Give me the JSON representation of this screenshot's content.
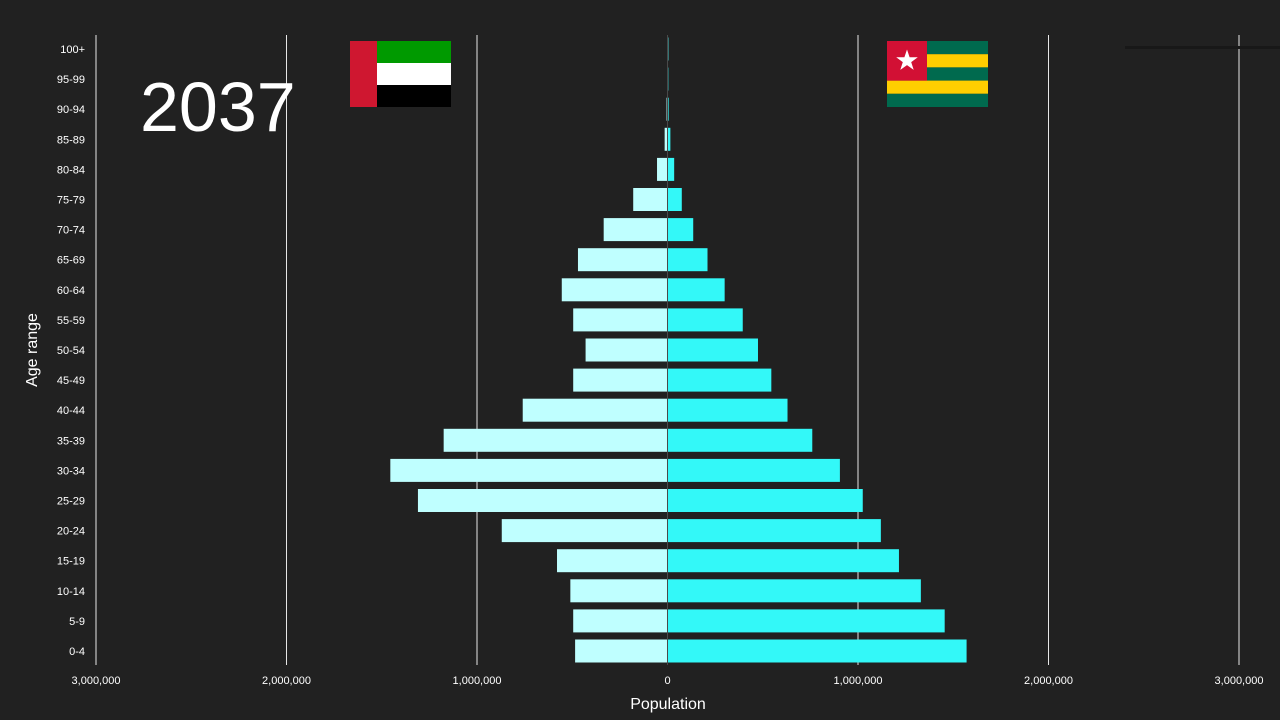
{
  "year": "2037",
  "flags": {
    "left": "uae-flag-icon",
    "right": "togo-flag-icon"
  },
  "colors": {
    "background": "#212121",
    "left_bars": "#bfffff",
    "right_bars": "#33f8f8",
    "grid": "#e6e6e6",
    "text": "#ffffff"
  },
  "chart_data": {
    "type": "bar",
    "orientation": "horizontal",
    "mirrored": true,
    "xlabel": "Population",
    "ylabel": "Age range",
    "xlim": [
      -3000000,
      3000000
    ],
    "x_ticks": [
      -3000000,
      -2000000,
      -1000000,
      0,
      1000000,
      2000000,
      3000000
    ],
    "x_tick_labels": [
      "3,000,000",
      "2,000,000",
      "1,000,000",
      "0",
      "1,000,000",
      "2,000,000",
      "3,000,000"
    ],
    "grid": true,
    "categories": [
      "100+",
      "95-99",
      "90-94",
      "85-89",
      "80-84",
      "75-79",
      "70-74",
      "65-69",
      "60-64",
      "55-59",
      "50-54",
      "45-49",
      "40-44",
      "35-39",
      "30-34",
      "25-29",
      "20-24",
      "15-19",
      "10-14",
      "5-9",
      "0-4"
    ],
    "series": [
      {
        "values": [
          500,
          1500,
          5000,
          15000,
          55000,
          180000,
          335000,
          470000,
          555000,
          495000,
          430000,
          495000,
          760000,
          1175000,
          1455000,
          1310000,
          870000,
          580000,
          510000,
          495000,
          485000
        ]
      },
      {
        "values": [
          1000,
          2000,
          6000,
          15000,
          35000,
          75000,
          135000,
          210000,
          300000,
          395000,
          475000,
          545000,
          630000,
          760000,
          905000,
          1025000,
          1120000,
          1215000,
          1330000,
          1455000,
          1570000
        ]
      }
    ]
  }
}
